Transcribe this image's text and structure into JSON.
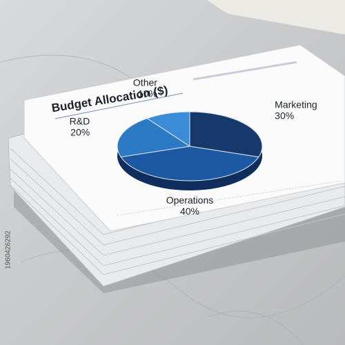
{
  "chart_data": {
    "type": "pie",
    "title": "Budget Allocation ($)",
    "categories": [
      "Marketing",
      "Operations",
      "R&D",
      "Other"
    ],
    "values": [
      30,
      40,
      20,
      10
    ],
    "value_labels": [
      "30%",
      "40%",
      "20%",
      "10%"
    ],
    "colors": [
      "#17386b",
      "#1d58a3",
      "#2c79c4",
      "#3a8cd6"
    ]
  },
  "watermark": "1960426292"
}
